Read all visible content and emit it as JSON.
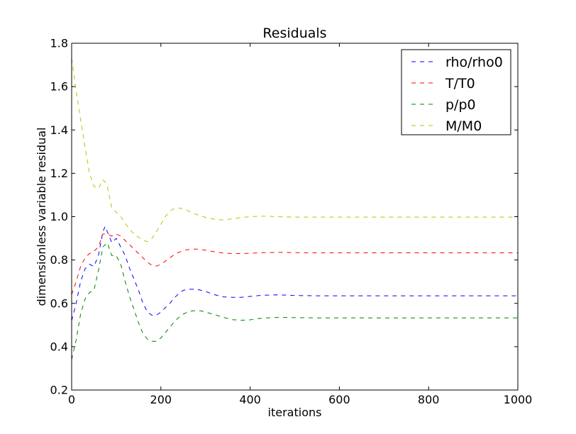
{
  "chart_data": {
    "type": "line",
    "title": "Residuals",
    "xlabel": "iterations",
    "ylabel": "dimensionless variable residual",
    "xlim": [
      0,
      1000
    ],
    "ylim": [
      0.2,
      1.8
    ],
    "x_ticks": [
      0,
      200,
      400,
      600,
      800,
      1000
    ],
    "y_ticks": [
      0.2,
      0.4,
      0.6,
      0.8,
      1.0,
      1.2,
      1.4,
      1.6,
      1.8
    ],
    "x_tick_labels": [
      "0",
      "200",
      "400",
      "600",
      "800",
      "1000"
    ],
    "y_tick_labels": [
      "0.2",
      "0.4",
      "0.6",
      "0.8",
      "1.0",
      "1.2",
      "1.4",
      "1.6",
      "1.8"
    ],
    "grid": false,
    "legend": "top-right",
    "line_style": "dashed",
    "series": [
      {
        "name": "rho/rho0",
        "color": "#0000ff",
        "x": [
          0,
          10,
          20,
          30,
          40,
          50,
          60,
          70,
          75,
          80,
          90,
          100,
          110,
          120,
          130,
          140,
          150,
          160,
          170,
          180,
          190,
          200,
          210,
          220,
          230,
          240,
          250,
          260,
          270,
          280,
          290,
          300,
          320,
          340,
          360,
          380,
          400,
          420,
          440,
          460,
          480,
          500,
          550,
          600,
          650,
          700,
          800,
          900,
          1000
        ],
        "y": [
          0.52,
          0.6,
          0.7,
          0.76,
          0.78,
          0.77,
          0.82,
          0.93,
          0.955,
          0.93,
          0.88,
          0.9,
          0.86,
          0.82,
          0.76,
          0.71,
          0.66,
          0.6,
          0.56,
          0.545,
          0.545,
          0.56,
          0.58,
          0.6,
          0.625,
          0.645,
          0.66,
          0.665,
          0.665,
          0.665,
          0.66,
          0.655,
          0.64,
          0.63,
          0.628,
          0.628,
          0.632,
          0.636,
          0.638,
          0.639,
          0.638,
          0.636,
          0.635,
          0.635,
          0.635,
          0.635,
          0.635,
          0.635,
          0.635
        ]
      },
      {
        "name": "T/T0",
        "color": "#ff0000",
        "x": [
          0,
          10,
          20,
          30,
          40,
          50,
          60,
          70,
          80,
          90,
          100,
          110,
          120,
          130,
          140,
          150,
          160,
          170,
          180,
          190,
          200,
          210,
          220,
          230,
          240,
          250,
          260,
          270,
          280,
          290,
          300,
          320,
          340,
          360,
          380,
          400,
          420,
          440,
          460,
          480,
          500,
          550,
          600,
          650,
          700,
          800,
          900,
          1000
        ],
        "y": [
          0.64,
          0.7,
          0.77,
          0.81,
          0.83,
          0.84,
          0.86,
          0.92,
          0.92,
          0.91,
          0.92,
          0.91,
          0.89,
          0.87,
          0.85,
          0.83,
          0.81,
          0.79,
          0.775,
          0.772,
          0.78,
          0.795,
          0.81,
          0.825,
          0.835,
          0.843,
          0.848,
          0.85,
          0.85,
          0.848,
          0.845,
          0.838,
          0.832,
          0.83,
          0.83,
          0.831,
          0.833,
          0.834,
          0.835,
          0.835,
          0.834,
          0.833,
          0.833,
          0.833,
          0.833,
          0.833,
          0.833,
          0.833
        ]
      },
      {
        "name": "p/p0",
        "color": "#008000",
        "x": [
          0,
          10,
          20,
          30,
          40,
          50,
          60,
          70,
          80,
          90,
          100,
          110,
          120,
          130,
          140,
          150,
          160,
          170,
          180,
          190,
          200,
          210,
          220,
          230,
          240,
          250,
          260,
          270,
          280,
          290,
          300,
          320,
          340,
          360,
          380,
          400,
          420,
          440,
          460,
          480,
          500,
          550,
          600,
          650,
          700,
          800,
          900,
          1000
        ],
        "y": [
          0.34,
          0.43,
          0.55,
          0.62,
          0.65,
          0.66,
          0.75,
          0.86,
          0.88,
          0.82,
          0.82,
          0.78,
          0.7,
          0.63,
          0.57,
          0.51,
          0.46,
          0.435,
          0.425,
          0.425,
          0.44,
          0.465,
          0.49,
          0.515,
          0.535,
          0.55,
          0.56,
          0.565,
          0.566,
          0.565,
          0.56,
          0.548,
          0.535,
          0.525,
          0.522,
          0.524,
          0.53,
          0.533,
          0.535,
          0.535,
          0.534,
          0.533,
          0.533,
          0.533,
          0.533,
          0.533,
          0.533,
          0.533
        ]
      },
      {
        "name": "M/M0",
        "color": "#bfbf00",
        "x": [
          0,
          10,
          20,
          30,
          40,
          50,
          60,
          65,
          70,
          75,
          80,
          90,
          100,
          110,
          120,
          130,
          140,
          150,
          160,
          170,
          180,
          190,
          200,
          210,
          220,
          230,
          240,
          250,
          260,
          270,
          280,
          290,
          300,
          320,
          340,
          360,
          380,
          400,
          420,
          440,
          460,
          480,
          500,
          550,
          600,
          650,
          700,
          800,
          900,
          1000
        ],
        "y": [
          1.73,
          1.58,
          1.45,
          1.32,
          1.2,
          1.14,
          1.13,
          1.15,
          1.17,
          1.16,
          1.14,
          1.04,
          1.02,
          1.0,
          0.97,
          0.94,
          0.92,
          0.905,
          0.89,
          0.885,
          0.9,
          0.93,
          0.965,
          1.0,
          1.025,
          1.038,
          1.04,
          1.036,
          1.028,
          1.018,
          1.01,
          1.003,
          0.997,
          0.988,
          0.985,
          0.99,
          0.996,
          1.0,
          1.002,
          1.002,
          1.0,
          0.999,
          0.998,
          0.998,
          0.998,
          0.998,
          0.998,
          0.998,
          0.998,
          0.998
        ]
      }
    ]
  }
}
